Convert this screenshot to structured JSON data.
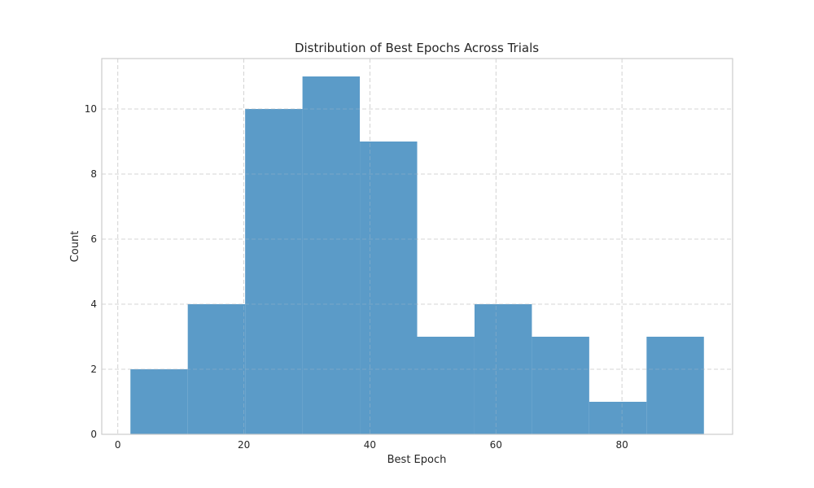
{
  "chart_data": {
    "type": "bar",
    "subtype": "histogram",
    "title": "Distribution of Best Epochs Across Trials",
    "xlabel": "Best Epoch",
    "ylabel": "Count",
    "bin_edges": [
      2,
      11.1,
      20.2,
      29.3,
      38.4,
      47.5,
      56.6,
      65.7,
      74.8,
      83.9,
      93
    ],
    "values": [
      2,
      4,
      10,
      11,
      9,
      3,
      4,
      3,
      1,
      3
    ],
    "xlim": [
      -2.55,
      97.55
    ],
    "ylim": [
      0,
      11.55
    ],
    "xticks": [
      0,
      20,
      40,
      60,
      80
    ],
    "yticks": [
      0,
      2,
      4,
      6,
      8,
      10
    ],
    "grid": true,
    "bar_color": "#5b9bc8",
    "grid_color": "#cccccc",
    "frame_color": "#cccccc"
  }
}
